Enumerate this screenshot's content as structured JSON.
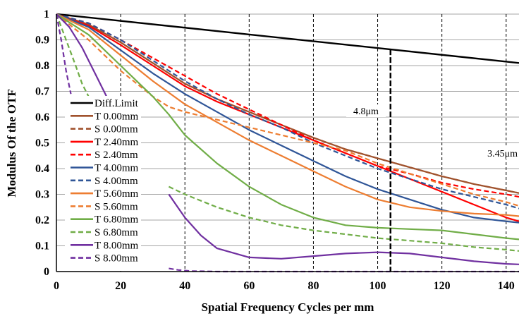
{
  "chart_data": {
    "type": "line",
    "title": "",
    "xlabel": "Spatial Frequency Cycles per mm",
    "ylabel": "Modulus Of  the OTF",
    "xlim": [
      0,
      144
    ],
    "ylim": [
      0,
      1
    ],
    "xticks": [
      0,
      20,
      40,
      60,
      80,
      100,
      120,
      140
    ],
    "yticks": [
      0,
      0.1,
      0.2,
      0.3,
      0.4,
      0.5,
      0.6,
      0.7,
      0.8,
      0.9,
      1
    ],
    "vertical_gridlines": [
      20,
      40,
      60,
      80,
      100,
      120,
      140
    ],
    "legend_position": "left",
    "annotations": [
      {
        "text": "4.8μm",
        "x": 104
      },
      {
        "text": "3.45μm",
        "x": 145
      }
    ],
    "marker_line_x": 104,
    "series": [
      {
        "name": "Diff.Limit",
        "color": "#000000",
        "style": "solid",
        "x": [
          0,
          144
        ],
        "y": [
          1.0,
          0.81
        ]
      },
      {
        "name": "T 0.00mm",
        "color": "#A0522D",
        "style": "solid",
        "x": [
          0,
          10,
          20,
          30,
          40,
          50,
          60,
          70,
          80,
          90,
          100,
          110,
          120,
          130,
          140,
          144
        ],
        "y": [
          1.0,
          0.96,
          0.89,
          0.81,
          0.73,
          0.67,
          0.62,
          0.57,
          0.52,
          0.475,
          0.44,
          0.405,
          0.37,
          0.34,
          0.315,
          0.305
        ]
      },
      {
        "name": "S 0.00mm",
        "color": "#A0522D",
        "style": "dashed",
        "x": [
          0,
          10,
          20,
          30,
          40,
          50,
          60,
          70,
          80,
          90,
          100,
          110,
          120,
          130,
          140,
          144
        ],
        "y": [
          1.0,
          0.96,
          0.89,
          0.81,
          0.73,
          0.67,
          0.62,
          0.57,
          0.52,
          0.475,
          0.44,
          0.405,
          0.37,
          0.34,
          0.315,
          0.305
        ]
      },
      {
        "name": "T 2.40mm",
        "color": "#FF0000",
        "style": "solid",
        "x": [
          0,
          10,
          20,
          30,
          40,
          50,
          60,
          70,
          80,
          90,
          100,
          110,
          120,
          130,
          140,
          144
        ],
        "y": [
          1.0,
          0.955,
          0.88,
          0.8,
          0.72,
          0.66,
          0.61,
          0.56,
          0.51,
          0.46,
          0.41,
          0.36,
          0.31,
          0.26,
          0.21,
          0.195
        ]
      },
      {
        "name": "S 2.40mm",
        "color": "#FF0000",
        "style": "dashed",
        "x": [
          0,
          10,
          20,
          30,
          40,
          50,
          60,
          70,
          80,
          90,
          100,
          110,
          120,
          130,
          140,
          144
        ],
        "y": [
          1.0,
          0.965,
          0.9,
          0.83,
          0.76,
          0.69,
          0.63,
          0.57,
          0.51,
          0.46,
          0.41,
          0.38,
          0.345,
          0.32,
          0.3,
          0.29
        ]
      },
      {
        "name": "T 4.00mm",
        "color": "#2F5597",
        "style": "solid",
        "x": [
          0,
          10,
          20,
          30,
          40,
          50,
          60,
          70,
          80,
          90,
          100,
          110,
          120,
          130,
          140,
          144
        ],
        "y": [
          1.0,
          0.95,
          0.86,
          0.77,
          0.69,
          0.62,
          0.55,
          0.49,
          0.43,
          0.37,
          0.32,
          0.28,
          0.24,
          0.21,
          0.195,
          0.19
        ]
      },
      {
        "name": "S 4.00mm",
        "color": "#2F5597",
        "style": "dashed",
        "x": [
          0,
          10,
          20,
          30,
          40,
          50,
          60,
          70,
          80,
          90,
          100,
          110,
          120,
          130,
          140,
          144
        ],
        "y": [
          1.0,
          0.965,
          0.9,
          0.82,
          0.74,
          0.67,
          0.61,
          0.56,
          0.5,
          0.45,
          0.4,
          0.36,
          0.32,
          0.29,
          0.26,
          0.245
        ]
      },
      {
        "name": "T 5.60mm",
        "color": "#ED7D31",
        "style": "solid",
        "x": [
          0,
          10,
          20,
          30,
          40,
          50,
          60,
          70,
          80,
          90,
          100,
          110,
          120,
          130,
          140,
          144
        ],
        "y": [
          1.0,
          0.94,
          0.84,
          0.74,
          0.65,
          0.58,
          0.51,
          0.45,
          0.39,
          0.33,
          0.28,
          0.25,
          0.235,
          0.225,
          0.22,
          0.215
        ]
      },
      {
        "name": "S 5.60mm",
        "color": "#ED7D31",
        "style": "dashed",
        "x": [
          0,
          10,
          20,
          30,
          35,
          40,
          50,
          60,
          70,
          80,
          90,
          100,
          110,
          120,
          130,
          140,
          144
        ],
        "y": [
          1.0,
          0.9,
          0.78,
          0.68,
          0.64,
          0.62,
          0.59,
          0.56,
          0.53,
          0.5,
          0.47,
          0.42,
          0.38,
          0.34,
          0.3,
          0.27,
          0.255
        ]
      },
      {
        "name": "T 6.80mm",
        "color": "#70AD47",
        "style": "solid",
        "x": [
          0,
          10,
          20,
          30,
          35,
          40,
          50,
          60,
          70,
          80,
          90,
          100,
          110,
          120,
          130,
          140,
          144
        ],
        "y": [
          1.0,
          0.92,
          0.8,
          0.68,
          0.61,
          0.53,
          0.42,
          0.33,
          0.26,
          0.21,
          0.18,
          0.17,
          0.165,
          0.16,
          0.145,
          0.13,
          0.125
        ]
      },
      {
        "name": "S 6.80mm",
        "color": "#70AD47",
        "style": "dashed",
        "x": [
          0,
          3,
          6,
          8,
          10
        ],
        "y": [
          1.0,
          0.9,
          0.8,
          0.73,
          0.68
        ]
      },
      {
        "name": "S 6.80mm (tail)",
        "color": "#70AD47",
        "style": "dashed",
        "x": [
          35,
          40,
          50,
          60,
          70,
          80,
          90,
          100,
          110,
          120,
          130,
          140,
          144
        ],
        "y": [
          0.33,
          0.3,
          0.25,
          0.21,
          0.18,
          0.16,
          0.145,
          0.13,
          0.12,
          0.11,
          0.095,
          0.085,
          0.08
        ]
      },
      {
        "name": "T 8.00mm",
        "color": "#7030A0",
        "style": "solid",
        "x": [
          0,
          4,
          8,
          12,
          16,
          18
        ],
        "y": [
          1.0,
          0.95,
          0.87,
          0.77,
          0.67,
          0.62
        ]
      },
      {
        "name": "T 8.00mm (tail)",
        "color": "#7030A0",
        "style": "solid",
        "x": [
          35,
          40,
          45,
          50,
          60,
          70,
          80,
          90,
          100,
          110,
          120,
          130,
          140,
          144
        ],
        "y": [
          0.3,
          0.21,
          0.14,
          0.09,
          0.055,
          0.05,
          0.06,
          0.07,
          0.075,
          0.07,
          0.055,
          0.04,
          0.03,
          0.028
        ]
      },
      {
        "name": "S 8.00mm",
        "color": "#7030A0",
        "style": "dashed",
        "x": [
          0,
          1.5,
          3,
          4.5
        ],
        "y": [
          1.0,
          0.9,
          0.78,
          0.69
        ]
      },
      {
        "name": "S 8.00mm (tail)",
        "color": "#7030A0",
        "style": "dashed",
        "x": [
          35,
          38,
          42,
          50,
          60,
          80,
          100,
          120,
          144
        ],
        "y": [
          0.012,
          0.006,
          0.002,
          0.0,
          0.0,
          0.0,
          0.0,
          0.0,
          0.0
        ]
      }
    ],
    "legend": [
      {
        "label": "Diff.Limit",
        "color": "#000000",
        "style": "solid"
      },
      {
        "label": "T 0.00mm",
        "color": "#A0522D",
        "style": "solid"
      },
      {
        "label": "S 0.00mm",
        "color": "#A0522D",
        "style": "dashed"
      },
      {
        "label": "T 2.40mm",
        "color": "#FF0000",
        "style": "solid"
      },
      {
        "label": "S 2.40mm",
        "color": "#FF0000",
        "style": "dashed"
      },
      {
        "label": "T 4.00mm",
        "color": "#2F5597",
        "style": "solid"
      },
      {
        "label": "S 4.00mm",
        "color": "#2F5597",
        "style": "dashed"
      },
      {
        "label": "T 5.60mm",
        "color": "#ED7D31",
        "style": "solid"
      },
      {
        "label": "S 5.60mm",
        "color": "#ED7D31",
        "style": "dashed"
      },
      {
        "label": "T 6.80mm",
        "color": "#70AD47",
        "style": "solid"
      },
      {
        "label": "S 6.80mm",
        "color": "#70AD47",
        "style": "dashed"
      },
      {
        "label": "T 8.00mm",
        "color": "#7030A0",
        "style": "solid"
      },
      {
        "label": "S 8.00mm",
        "color": "#7030A0",
        "style": "dashed"
      }
    ]
  }
}
